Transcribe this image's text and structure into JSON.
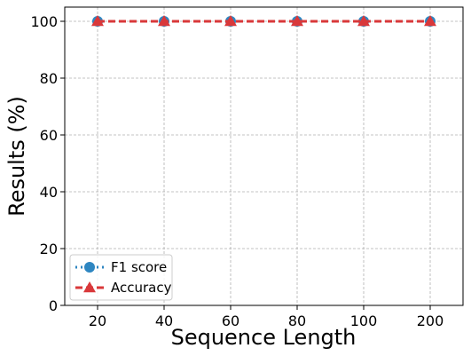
{
  "chart_data": {
    "type": "line",
    "title": "",
    "xlabel": "Sequence Length",
    "ylabel": "Results (%)",
    "categories": [
      "20",
      "40",
      "60",
      "80",
      "100",
      "200"
    ],
    "ylim": [
      0,
      105
    ],
    "yticks": [
      "0",
      "20",
      "40",
      "60",
      "80",
      "100"
    ],
    "grid": true,
    "legend_position": "bottom-left",
    "series": [
      {
        "name": "F1 score",
        "values": [
          100,
          100,
          100,
          100,
          100,
          100
        ],
        "color": "#2e86c1",
        "marker": "circle",
        "line": "dotted"
      },
      {
        "name": "Accuracy",
        "values": [
          100,
          100,
          100,
          100,
          100,
          100
        ],
        "color": "#d9383a",
        "marker": "triangle",
        "line": "dashed"
      }
    ]
  }
}
